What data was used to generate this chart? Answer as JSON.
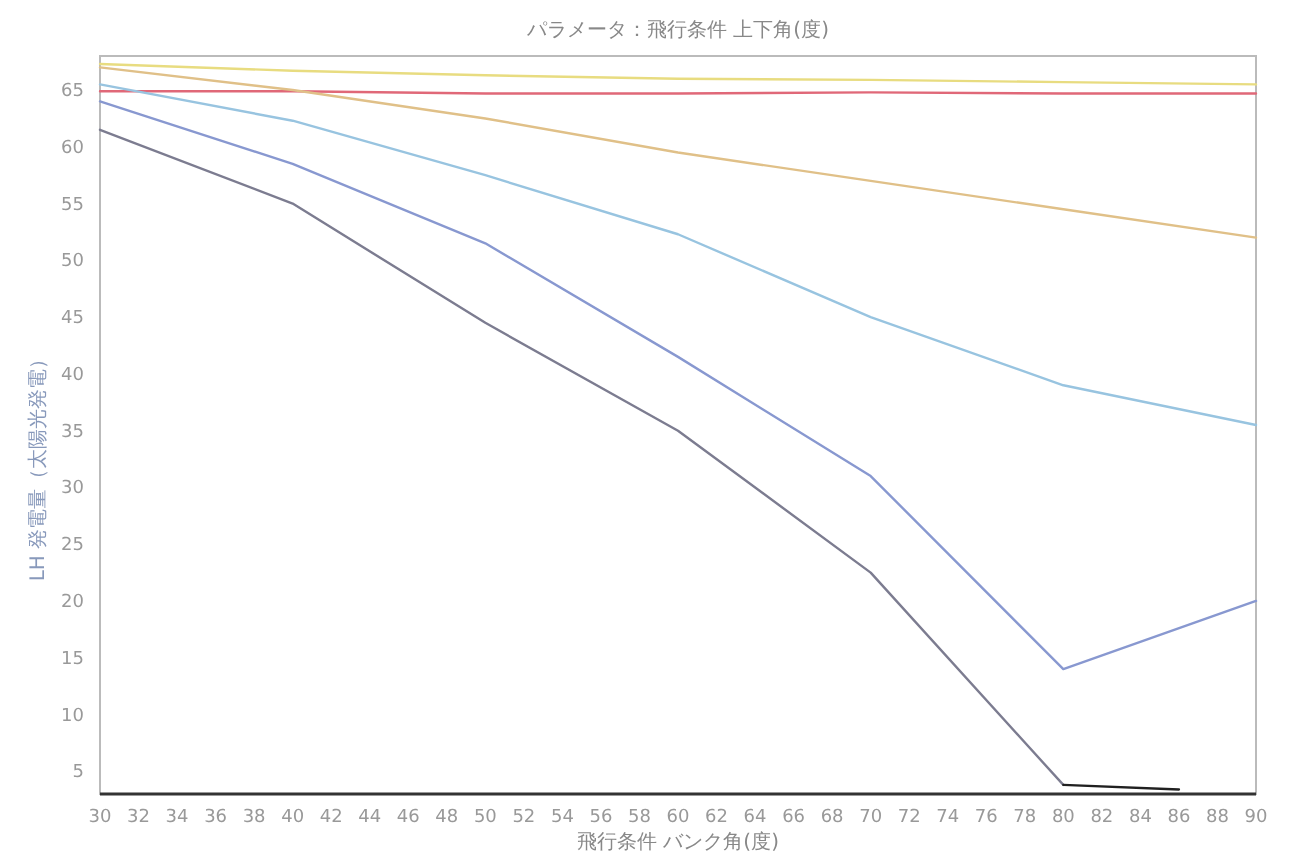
{
  "chart_data": {
    "type": "line",
    "title": "パラメータ：飛行条件 上下角(度)",
    "xlabel": "飛行条件 バンク角(度)",
    "ylabel": "LH 発電量（太陽光発電）",
    "x": [
      30,
      40,
      50,
      60,
      70,
      80,
      90
    ],
    "xlim": [
      30,
      90
    ],
    "xticks": [
      30,
      32,
      34,
      36,
      38,
      40,
      42,
      44,
      46,
      48,
      50,
      52,
      54,
      56,
      58,
      60,
      62,
      64,
      66,
      68,
      70,
      72,
      74,
      76,
      78,
      80,
      82,
      84,
      86,
      88,
      90
    ],
    "ylim": [
      3,
      68
    ],
    "yticks": [
      5,
      10,
      15,
      20,
      25,
      30,
      35,
      40,
      45,
      50,
      55,
      60,
      65
    ],
    "grid": false,
    "marker": "none",
    "line_style": "solid",
    "series": [
      {
        "color": "#e8dc80",
        "values": [
          67.3,
          66.7,
          66.3,
          66.0,
          65.9,
          65.7,
          65.5
        ]
      },
      {
        "color": "#e06878",
        "values": [
          64.9,
          64.9,
          64.7,
          64.7,
          64.8,
          64.7,
          64.7
        ]
      },
      {
        "color": "#e0c088",
        "values": [
          67,
          65,
          62.5,
          59.5,
          57,
          54.5,
          52
        ]
      },
      {
        "color": "#98c4e0",
        "values": [
          65.5,
          62.3,
          57.5,
          52.3,
          45,
          39,
          35.5
        ]
      },
      {
        "color": "#8898d0",
        "values": [
          64,
          58.5,
          51.5,
          41.5,
          31,
          14,
          20
        ]
      },
      {
        "color": "#7c7c90",
        "values": [
          61.5,
          55,
          44.5,
          35,
          22.5,
          3.8,
          null
        ]
      },
      {
        "color": "#202020",
        "x": [
          80,
          86
        ],
        "values": [
          3.8,
          3.4
        ]
      }
    ]
  }
}
